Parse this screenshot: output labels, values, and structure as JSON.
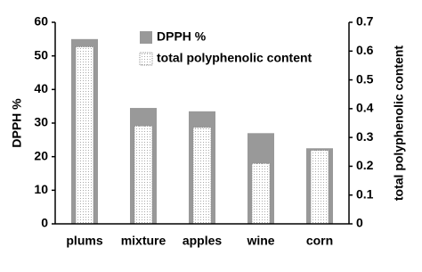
{
  "chart_data": {
    "type": "bar",
    "categories": [
      "plums",
      "mixture",
      "apples",
      "wine",
      "corn"
    ],
    "ylabel": "DPPH %",
    "y2label": "total polyphenolic content",
    "ylim": [
      0,
      60
    ],
    "yticks": [
      0,
      10,
      20,
      30,
      40,
      50,
      60
    ],
    "y2lim": [
      0,
      0.7
    ],
    "y2ticks": [
      0,
      0.1,
      0.2,
      0.3,
      0.4,
      0.5,
      0.6,
      0.7
    ],
    "grid": false,
    "legend": "top-right",
    "series": [
      {
        "name": "DPPH %",
        "color": "#999999",
        "values": [
          55,
          34.5,
          33.5,
          27,
          22.5
        ]
      },
      {
        "name": "total polyphenolic content",
        "color": "#ffffff",
        "axis": "y2",
        "values": [
          0.615,
          0.34,
          0.335,
          0.21,
          0.255
        ]
      }
    ]
  }
}
